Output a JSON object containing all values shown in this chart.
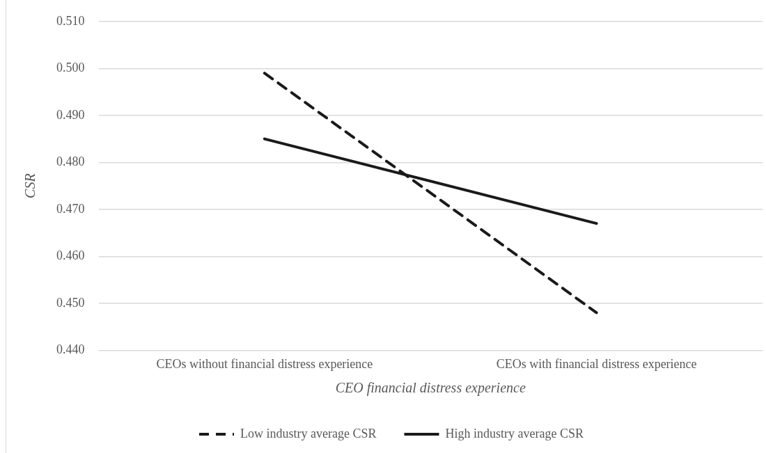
{
  "chart_data": {
    "type": "line",
    "xlabel": "CEO financial distress experience",
    "ylabel": "CSR",
    "categories": [
      "CEOs without financial distress experience",
      "CEOs with financial distress experience"
    ],
    "series": [
      {
        "name": "Low industry average CSR",
        "color": "#1a1a1a",
        "values": [
          0.499,
          0.448
        ],
        "line_style": "dashed"
      },
      {
        "name": "High industry average CSR",
        "color": "#1a1a1a",
        "values": [
          0.485,
          0.467
        ],
        "line_style": "solid"
      }
    ],
    "ylim": [
      0.44,
      0.51
    ],
    "yticks": [
      {
        "value": 0.44,
        "label": "0.440"
      },
      {
        "value": 0.45,
        "label": "0.450"
      },
      {
        "value": 0.46,
        "label": "0.460"
      },
      {
        "value": 0.47,
        "label": "0.470"
      },
      {
        "value": 0.48,
        "label": "0.480"
      },
      {
        "value": 0.49,
        "label": "0.490"
      },
      {
        "value": 0.5,
        "label": "0.500"
      },
      {
        "value": 0.51,
        "label": "0.510"
      }
    ],
    "grid": "y",
    "legend": "bottom",
    "marker": "none"
  }
}
